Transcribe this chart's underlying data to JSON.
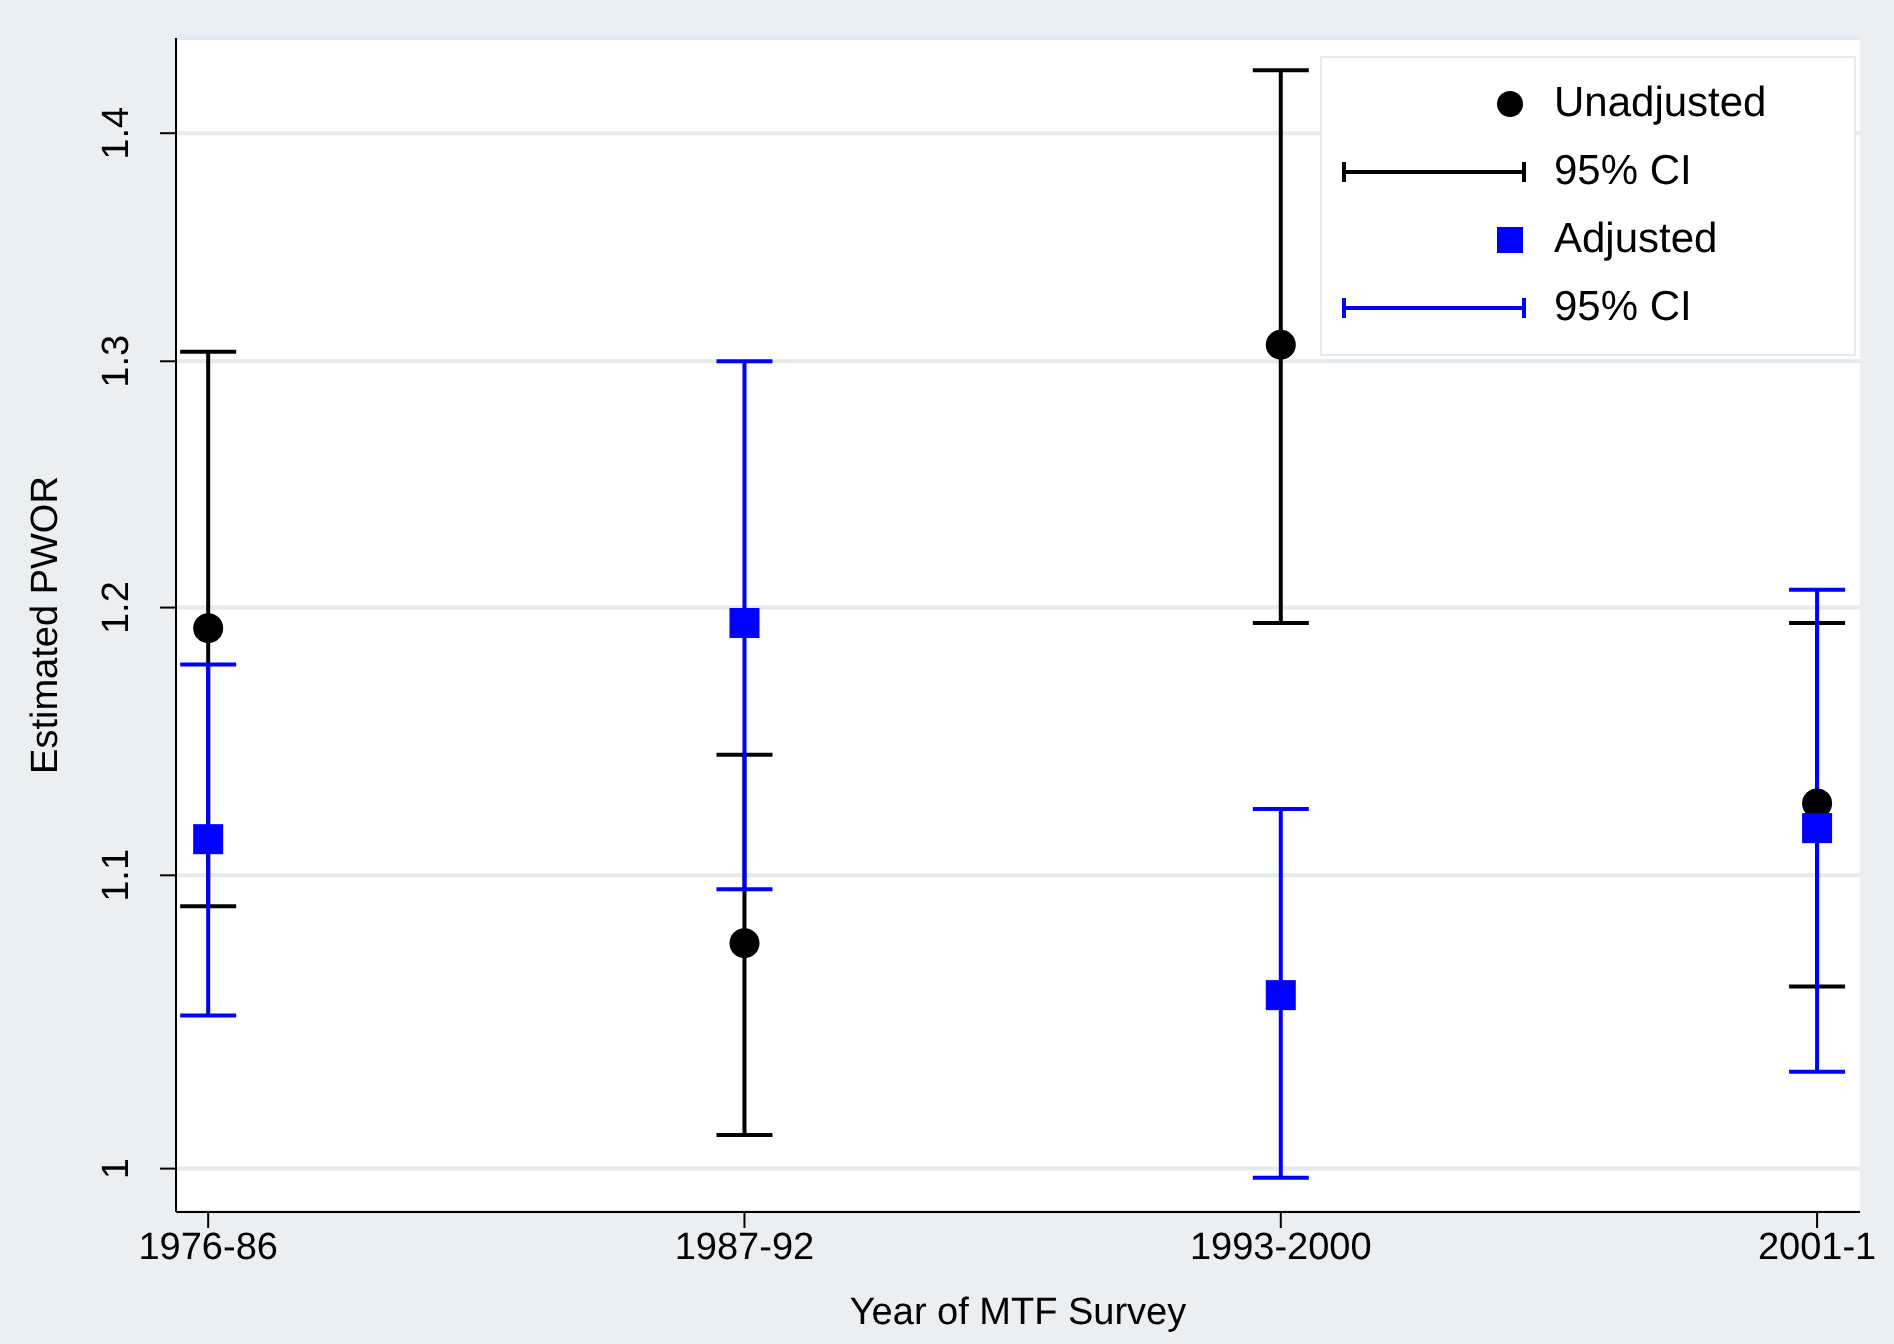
{
  "chart_data": {
    "type": "scatter",
    "xlabel": "Year of MTF Survey",
    "ylabel": "Estimated PWOR",
    "categories": [
      "1976-86",
      "1987-92",
      "1993-2000",
      "2001-1"
    ],
    "series": [
      {
        "name": "Unadjusted",
        "color": "#000000",
        "marker": "circle",
        "values": [
          1.192,
          1.076,
          1.307,
          1.126
        ],
        "errors": [
          [
            1.089,
            1.304
          ],
          [
            1.011,
            1.144
          ],
          [
            1.194,
            1.429
          ],
          [
            1.061,
            1.194
          ]
        ]
      },
      {
        "name": "Adjusted",
        "color": "#0000ff",
        "marker": "square",
        "values": [
          1.113,
          1.194,
          1.058,
          1.117
        ],
        "errors": [
          [
            1.051,
            1.178
          ],
          [
            1.095,
            1.3
          ],
          [
            0.997,
            1.124
          ],
          [
            1.032,
            1.207
          ]
        ]
      }
    ],
    "annotations": [
      "95% CI",
      "95% CI"
    ],
    "log": "y",
    "ylim": [
      0.986,
      1.444
    ],
    "yticks": [
      1,
      1.1,
      1.2,
      1.3,
      1.4
    ],
    "grid": "y",
    "legend": "top right"
  }
}
